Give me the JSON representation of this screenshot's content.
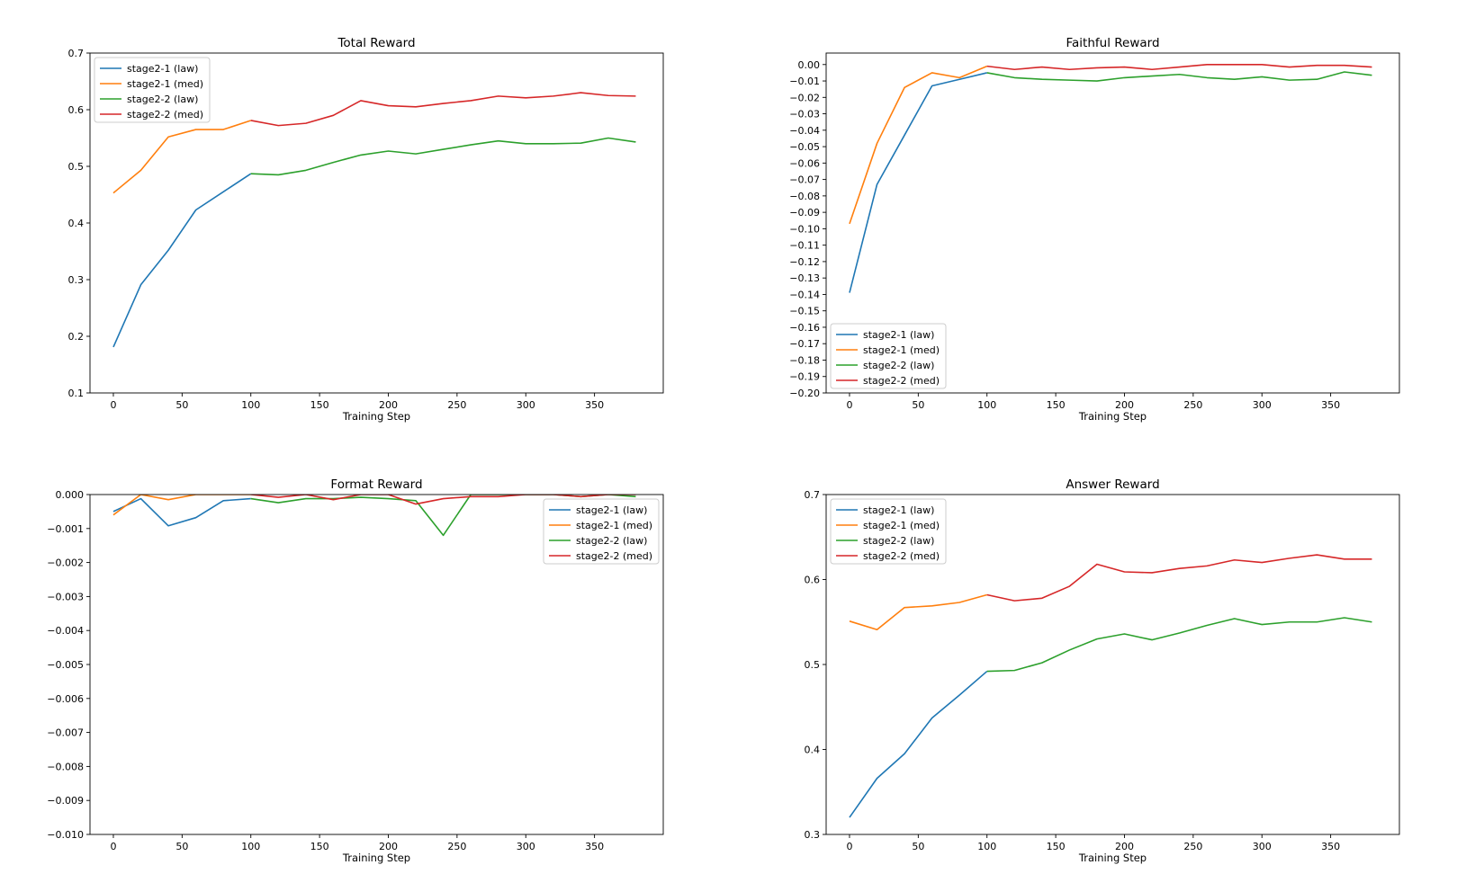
{
  "chart_data": [
    {
      "type": "line",
      "title": "Total Reward",
      "xlabel": "Training Step",
      "ylabel": "",
      "xlim": [
        -17,
        400
      ],
      "ylim": [
        0.1,
        0.7
      ],
      "x_ticks": [
        0,
        50,
        100,
        150,
        200,
        250,
        300,
        350
      ],
      "y_ticks": [
        0.1,
        0.2,
        0.3,
        0.4,
        0.5,
        0.6,
        0.7
      ],
      "y_tick_labels": [
        "0.1",
        "0.2",
        "0.3",
        "0.4",
        "0.5",
        "0.6",
        "0.7"
      ],
      "legend_position": "upper-left",
      "series": [
        {
          "name": "stage2-1 (law)",
          "color": "#1f77b4",
          "x": [
            0,
            20,
            40,
            60,
            80,
            100
          ],
          "values": [
            0.181,
            0.291,
            0.352,
            0.423,
            0.455,
            0.487
          ]
        },
        {
          "name": "stage2-1 (med)",
          "color": "#ff7f0e",
          "x": [
            0,
            20,
            40,
            60,
            80,
            100
          ],
          "values": [
            0.453,
            0.493,
            0.552,
            0.565,
            0.565,
            0.581
          ]
        },
        {
          "name": "stage2-2 (law)",
          "color": "#2ca02c",
          "x": [
            100,
            120,
            140,
            160,
            180,
            200,
            220,
            240,
            260,
            280,
            300,
            320,
            340,
            360,
            380
          ],
          "values": [
            0.487,
            0.485,
            0.493,
            0.507,
            0.52,
            0.527,
            0.522,
            0.53,
            0.538,
            0.545,
            0.54,
            0.54,
            0.541,
            0.55,
            0.543
          ]
        },
        {
          "name": "stage2-2 (med)",
          "color": "#d62728",
          "x": [
            100,
            120,
            140,
            160,
            180,
            200,
            220,
            240,
            260,
            280,
            300,
            320,
            340,
            360,
            380
          ],
          "values": [
            0.581,
            0.572,
            0.576,
            0.59,
            0.616,
            0.607,
            0.605,
            0.611,
            0.616,
            0.624,
            0.621,
            0.624,
            0.63,
            0.625,
            0.624
          ]
        }
      ]
    },
    {
      "type": "line",
      "title": "Faithful Reward",
      "xlabel": "Training Step",
      "ylabel": "",
      "xlim": [
        -17,
        400
      ],
      "ylim": [
        -0.2,
        0.007
      ],
      "x_ticks": [
        0,
        50,
        100,
        150,
        200,
        250,
        300,
        350
      ],
      "y_ticks": [
        0.0,
        -0.01,
        -0.02,
        -0.03,
        -0.04,
        -0.05,
        -0.06,
        -0.07,
        -0.08,
        -0.09,
        -0.1,
        -0.11,
        -0.12,
        -0.13,
        -0.14,
        -0.15,
        -0.16,
        -0.17,
        -0.18,
        -0.19,
        -0.2
      ],
      "y_tick_labels": [
        "0.00",
        "−0.01",
        "−0.02",
        "−0.03",
        "−0.04",
        "−0.05",
        "−0.06",
        "−0.07",
        "−0.08",
        "−0.09",
        "−0.10",
        "−0.11",
        "−0.12",
        "−0.13",
        "−0.14",
        "−0.15",
        "−0.16",
        "−0.17",
        "−0.18",
        "−0.19",
        "−0.20"
      ],
      "legend_position": "lower-left",
      "series": [
        {
          "name": "stage2-1 (law)",
          "color": "#1f77b4",
          "x": [
            0,
            20,
            40,
            60,
            80,
            100
          ],
          "values": [
            -0.139,
            -0.073,
            -0.043,
            -0.013,
            -0.009,
            -0.005
          ]
        },
        {
          "name": "stage2-1 (med)",
          "color": "#ff7f0e",
          "x": [
            0,
            20,
            40,
            60,
            80,
            100
          ],
          "values": [
            -0.097,
            -0.048,
            -0.014,
            -0.005,
            -0.008,
            -0.001
          ]
        },
        {
          "name": "stage2-2 (law)",
          "color": "#2ca02c",
          "x": [
            100,
            120,
            140,
            160,
            180,
            200,
            220,
            240,
            260,
            280,
            300,
            320,
            340,
            360,
            380
          ],
          "values": [
            -0.005,
            -0.008,
            -0.009,
            -0.0095,
            -0.01,
            -0.008,
            -0.007,
            -0.006,
            -0.008,
            -0.009,
            -0.0075,
            -0.0095,
            -0.009,
            -0.0045,
            -0.0065
          ]
        },
        {
          "name": "stage2-2 (med)",
          "color": "#d62728",
          "x": [
            100,
            120,
            140,
            160,
            180,
            200,
            220,
            240,
            260,
            280,
            300,
            320,
            340,
            360,
            380
          ],
          "values": [
            -0.001,
            -0.003,
            -0.0015,
            -0.003,
            -0.002,
            -0.0015,
            -0.003,
            -0.0015,
            0.0,
            0.0,
            0.0,
            -0.0015,
            -0.0005,
            -0.0005,
            -0.0015
          ]
        }
      ]
    },
    {
      "type": "line",
      "title": "Format Reward",
      "xlabel": "Training Step",
      "ylabel": "",
      "xlim": [
        -17,
        400
      ],
      "ylim": [
        -0.01,
        0.0
      ],
      "x_ticks": [
        0,
        50,
        100,
        150,
        200,
        250,
        300,
        350
      ],
      "y_ticks": [
        0.0,
        -0.001,
        -0.002,
        -0.003,
        -0.004,
        -0.005,
        -0.006,
        -0.007,
        -0.008,
        -0.009,
        -0.01
      ],
      "y_tick_labels": [
        "0.000",
        "−0.001",
        "−0.002",
        "−0.003",
        "−0.004",
        "−0.005",
        "−0.006",
        "−0.007",
        "−0.008",
        "−0.009",
        "−0.010"
      ],
      "legend_position": "upper-right",
      "series": [
        {
          "name": "stage2-1 (law)",
          "color": "#1f77b4",
          "x": [
            0,
            20,
            40,
            60,
            80,
            100
          ],
          "values": [
            -0.0005,
            -0.00012,
            -0.00092,
            -0.00068,
            -0.00018,
            -0.00012
          ]
        },
        {
          "name": "stage2-1 (med)",
          "color": "#ff7f0e",
          "x": [
            0,
            20,
            40,
            60,
            80,
            100
          ],
          "values": [
            -0.0006,
            0.0,
            -0.00015,
            0.0,
            0.0,
            0.0
          ]
        },
        {
          "name": "stage2-2 (law)",
          "color": "#2ca02c",
          "x": [
            100,
            120,
            140,
            160,
            180,
            200,
            220,
            240,
            260,
            280,
            300,
            320,
            340,
            360,
            380
          ],
          "values": [
            -0.00012,
            -0.00024,
            -0.00012,
            -0.00012,
            -8e-05,
            -0.00012,
            -0.00018,
            -0.0012,
            0.0,
            0.0,
            0.0,
            0.0,
            -6e-05,
            0.0,
            -6e-05
          ]
        },
        {
          "name": "stage2-2 (med)",
          "color": "#d62728",
          "x": [
            100,
            120,
            140,
            160,
            180,
            200,
            220,
            240,
            260,
            280,
            300,
            320,
            340,
            360,
            380
          ],
          "values": [
            0.0,
            -8e-05,
            0.0,
            -0.00015,
            0.0,
            0.0,
            -0.00028,
            -0.00012,
            -6e-05,
            -6e-05,
            0.0,
            0.0,
            -6e-05,
            0.0,
            0.0
          ]
        }
      ]
    },
    {
      "type": "line",
      "title": "Answer Reward",
      "xlabel": "Training Step",
      "ylabel": "",
      "xlim": [
        -17,
        400
      ],
      "ylim": [
        0.3,
        0.7
      ],
      "x_ticks": [
        0,
        50,
        100,
        150,
        200,
        250,
        300,
        350
      ],
      "y_ticks": [
        0.3,
        0.4,
        0.5,
        0.6,
        0.7
      ],
      "y_tick_labels": [
        "0.3",
        "0.4",
        "0.5",
        "0.6",
        "0.7"
      ],
      "legend_position": "upper-left",
      "series": [
        {
          "name": "stage2-1 (law)",
          "color": "#1f77b4",
          "x": [
            0,
            20,
            40,
            60,
            80,
            100
          ],
          "values": [
            0.32,
            0.366,
            0.395,
            0.437,
            0.464,
            0.492
          ]
        },
        {
          "name": "stage2-1 (med)",
          "color": "#ff7f0e",
          "x": [
            0,
            20,
            40,
            60,
            80,
            100
          ],
          "values": [
            0.551,
            0.541,
            0.567,
            0.569,
            0.573,
            0.582
          ]
        },
        {
          "name": "stage2-2 (law)",
          "color": "#2ca02c",
          "x": [
            100,
            120,
            140,
            160,
            180,
            200,
            220,
            240,
            260,
            280,
            300,
            320,
            340,
            360,
            380
          ],
          "values": [
            0.492,
            0.493,
            0.502,
            0.517,
            0.53,
            0.536,
            0.529,
            0.537,
            0.546,
            0.554,
            0.547,
            0.55,
            0.55,
            0.555,
            0.55
          ]
        },
        {
          "name": "stage2-2 (med)",
          "color": "#d62728",
          "x": [
            100,
            120,
            140,
            160,
            180,
            200,
            220,
            240,
            260,
            280,
            300,
            320,
            340,
            360,
            380
          ],
          "values": [
            0.582,
            0.575,
            0.578,
            0.592,
            0.618,
            0.609,
            0.608,
            0.613,
            0.616,
            0.623,
            0.62,
            0.625,
            0.629,
            0.624,
            0.624
          ]
        }
      ]
    }
  ]
}
